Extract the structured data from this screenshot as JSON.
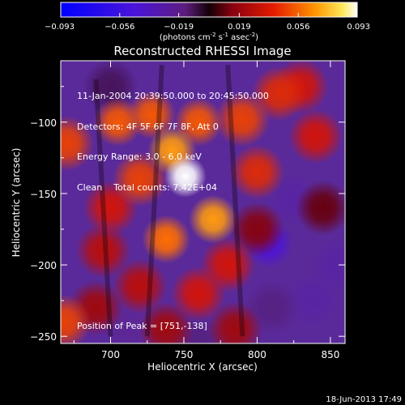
{
  "chart_data": {
    "type": "heatmap",
    "title": "Reconstructed RHESSI Image",
    "xlabel": "Heliocentric X (arcsec)",
    "ylabel": "Heliocentric Y (arcsec)",
    "xlim": [
      666,
      860
    ],
    "ylim": [
      -255,
      -57
    ],
    "xticks": [
      700,
      750,
      800,
      850
    ],
    "yticks": [
      -100,
      -150,
      -200,
      -250
    ],
    "colorbar": {
      "min": -0.093,
      "max": 0.093,
      "ticks": [
        "-0.093",
        "-0.056",
        "-0.019",
        "0.019",
        "0.056",
        "0.093"
      ],
      "label": "(photons cm",
      "label_sup1": "-2",
      "label_mid": " s",
      "label_sup2": "-1",
      "label_end": " asec",
      "label_sup3": "-2",
      "label_close": ")"
    },
    "annotations": [
      "11-Jan-2004 20:39:50.000 to 20:45:50.000",
      "Detectors: 4F 5F 6F 7F 8F, Att 0",
      "Energy Range: 3.0 - 6.0 keV",
      "Clean    Total counts: 7.42E+04"
    ],
    "peak_label": "Position of Peak = [751,-138]",
    "peak": [
      751,
      -138
    ],
    "sources": [
      {
        "x": 751,
        "y": -138,
        "intensity": 0.093
      },
      {
        "x": 742,
        "y": -120,
        "intensity": 0.06
      },
      {
        "x": 770,
        "y": -168,
        "intensity": 0.06
      },
      {
        "x": 738,
        "y": -182,
        "intensity": 0.05
      },
      {
        "x": 760,
        "y": -100,
        "intensity": 0.045
      },
      {
        "x": 728,
        "y": -95,
        "intensity": 0.045
      },
      {
        "x": 705,
        "y": -100,
        "intensity": 0.045
      },
      {
        "x": 720,
        "y": -140,
        "intensity": 0.04
      },
      {
        "x": 790,
        "y": -98,
        "intensity": 0.04
      },
      {
        "x": 800,
        "y": -135,
        "intensity": 0.035
      },
      {
        "x": 700,
        "y": -160,
        "intensity": 0.03
      },
      {
        "x": 760,
        "y": -220,
        "intensity": 0.03
      },
      {
        "x": 720,
        "y": -215,
        "intensity": 0.025
      },
      {
        "x": 780,
        "y": -200,
        "intensity": 0.03
      },
      {
        "x": 695,
        "y": -190,
        "intensity": 0.025
      },
      {
        "x": 815,
        "y": -80,
        "intensity": 0.035
      },
      {
        "x": 840,
        "y": -110,
        "intensity": 0.03
      },
      {
        "x": 830,
        "y": -75,
        "intensity": 0.03
      },
      {
        "x": 670,
        "y": -115,
        "intensity": 0.04
      },
      {
        "x": 668,
        "y": -240,
        "intensity": 0.04
      },
      {
        "x": 690,
        "y": -230,
        "intensity": 0.02
      },
      {
        "x": 785,
        "y": -245,
        "intensity": 0.02
      },
      {
        "x": 738,
        "y": -245,
        "intensity": 0.02
      },
      {
        "x": 800,
        "y": -175,
        "intensity": 0.015
      },
      {
        "x": 845,
        "y": -160,
        "intensity": 0.01
      }
    ],
    "minima": [
      {
        "x": 808,
        "y": -185,
        "intensity": -0.06
      },
      {
        "x": 825,
        "y": -155,
        "intensity": -0.04
      },
      {
        "x": 838,
        "y": -225,
        "intensity": -0.04
      },
      {
        "x": 760,
        "y": -255,
        "intensity": -0.03
      },
      {
        "x": 712,
        "y": -245,
        "intensity": -0.035
      },
      {
        "x": 855,
        "y": -200,
        "intensity": -0.04
      },
      {
        "x": 810,
        "y": -230,
        "intensity": -0.03
      },
      {
        "x": 700,
        "y": -75,
        "intensity": -0.02
      }
    ]
  },
  "footer_timestamp": "18-Jun-2013 17:49"
}
